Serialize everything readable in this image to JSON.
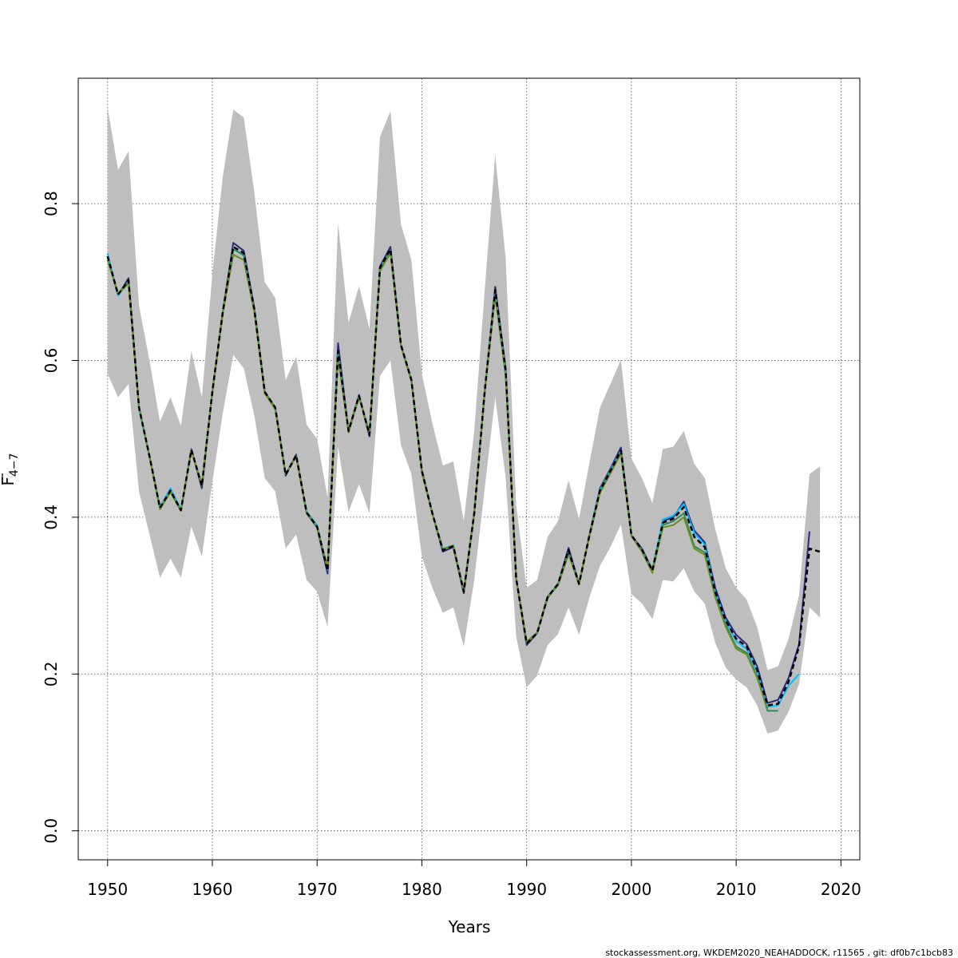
{
  "chart_data": {
    "type": "line",
    "title": "",
    "xlabel": "Years",
    "ylabel_main": "F",
    "ylabel_sub": "4−7",
    "xlim": [
      1947.2,
      2021.8
    ],
    "ylim": [
      -0.037,
      0.96
    ],
    "xticks": [
      1950,
      1960,
      1970,
      1980,
      1990,
      2000,
      2010,
      2020
    ],
    "yticks": [
      0.0,
      0.2,
      0.4,
      0.6,
      0.8
    ],
    "ytick_labels": [
      "0.0",
      "0.2",
      "0.4",
      "0.6",
      "0.8"
    ],
    "grid": true,
    "legend": "none",
    "band": {
      "color": "#bebebe",
      "x": [
        1950,
        1951,
        1952,
        1953,
        1954,
        1955,
        1956,
        1957,
        1958,
        1959,
        1960,
        1961,
        1962,
        1963,
        1964,
        1965,
        1966,
        1967,
        1968,
        1969,
        1970,
        1971,
        1972,
        1973,
        1974,
        1975,
        1976,
        1977,
        1978,
        1979,
        1980,
        1981,
        1982,
        1983,
        1984,
        1985,
        1986,
        1987,
        1988,
        1989,
        1990,
        1991,
        1992,
        1993,
        1994,
        1995,
        1996,
        1997,
        1998,
        1999,
        2000,
        2001,
        2002,
        2003,
        2004,
        2005,
        2006,
        2007,
        2008,
        2009,
        2010,
        2011,
        2012,
        2013,
        2014,
        2015,
        2016,
        2017,
        2018
      ],
      "upper": [
        0.923,
        0.843,
        0.867,
        0.67,
        0.6,
        0.522,
        0.553,
        0.517,
        0.612,
        0.553,
        0.71,
        0.835,
        0.92,
        0.91,
        0.815,
        0.7,
        0.68,
        0.575,
        0.605,
        0.518,
        0.5,
        0.425,
        0.775,
        0.648,
        0.695,
        0.64,
        0.885,
        0.918,
        0.774,
        0.728,
        0.583,
        0.52,
        0.466,
        0.471,
        0.395,
        0.51,
        0.69,
        0.862,
        0.73,
        0.415,
        0.31,
        0.32,
        0.375,
        0.395,
        0.447,
        0.398,
        0.47,
        0.54,
        0.57,
        0.601,
        0.475,
        0.45,
        0.418,
        0.487,
        0.49,
        0.51,
        0.468,
        0.45,
        0.385,
        0.335,
        0.31,
        0.295,
        0.26,
        0.205,
        0.21,
        0.245,
        0.3,
        0.455,
        0.465
      ],
      "lower": [
        0.583,
        0.553,
        0.57,
        0.433,
        0.378,
        0.323,
        0.347,
        0.323,
        0.388,
        0.35,
        0.445,
        0.533,
        0.607,
        0.59,
        0.53,
        0.45,
        0.433,
        0.36,
        0.378,
        0.32,
        0.305,
        0.26,
        0.49,
        0.407,
        0.442,
        0.405,
        0.58,
        0.6,
        0.492,
        0.455,
        0.35,
        0.31,
        0.278,
        0.285,
        0.235,
        0.32,
        0.437,
        0.553,
        0.45,
        0.248,
        0.183,
        0.198,
        0.237,
        0.251,
        0.285,
        0.25,
        0.298,
        0.338,
        0.362,
        0.391,
        0.302,
        0.29,
        0.27,
        0.32,
        0.318,
        0.335,
        0.305,
        0.29,
        0.24,
        0.208,
        0.193,
        0.183,
        0.16,
        0.124,
        0.128,
        0.152,
        0.187,
        0.285,
        0.272
      ]
    },
    "series": [
      {
        "color": "#2a2a80",
        "dash": false,
        "width": 2,
        "x": [
          1950,
          1951,
          1952,
          1953,
          1954,
          1955,
          1956,
          1957,
          1958,
          1959,
          1960,
          1961,
          1962,
          1963,
          1964,
          1965,
          1966,
          1967,
          1968,
          1969,
          1970,
          1971,
          1972,
          1973,
          1974,
          1975,
          1976,
          1977,
          1978,
          1979,
          1980,
          1981,
          1982,
          1983,
          1984,
          1985,
          1986,
          1987,
          1988,
          1989,
          1990,
          1991,
          1992,
          1993,
          1994,
          1995,
          1996,
          1997,
          1998,
          1999,
          2000,
          2001,
          2002,
          2003,
          2004,
          2005,
          2006,
          2007,
          2008,
          2009,
          2010,
          2011,
          2012,
          2013,
          2014,
          2015,
          2016,
          2017
        ],
        "y": [
          0.733,
          0.683,
          0.705,
          0.54,
          0.478,
          0.413,
          0.433,
          0.408,
          0.487,
          0.437,
          0.56,
          0.662,
          0.75,
          0.74,
          0.668,
          0.56,
          0.54,
          0.453,
          0.48,
          0.405,
          0.387,
          0.328,
          0.622,
          0.51,
          0.556,
          0.503,
          0.72,
          0.745,
          0.62,
          0.575,
          0.46,
          0.405,
          0.356,
          0.362,
          0.303,
          0.406,
          0.56,
          0.694,
          0.59,
          0.322,
          0.237,
          0.252,
          0.297,
          0.315,
          0.361,
          0.315,
          0.378,
          0.437,
          0.462,
          0.489,
          0.377,
          0.36,
          0.333,
          0.395,
          0.4,
          0.42,
          0.383,
          0.368,
          0.31,
          0.272,
          0.25,
          0.238,
          0.21,
          0.163,
          0.167,
          0.195,
          0.238,
          0.382
        ]
      },
      {
        "color": "#00bfff",
        "dash": false,
        "width": 2,
        "x": [
          1950,
          1951,
          1952,
          1953,
          1954,
          1955,
          1956,
          1957,
          1958,
          1959,
          1960,
          1961,
          1962,
          1963,
          1964,
          1965,
          1966,
          1967,
          1968,
          1969,
          1970,
          1971,
          1972,
          1973,
          1974,
          1975,
          1976,
          1977,
          1978,
          1979,
          1980,
          1981,
          1982,
          1983,
          1984,
          1985,
          1986,
          1987,
          1988,
          1989,
          1990,
          1991,
          1992,
          1993,
          1994,
          1995,
          1996,
          1997,
          1998,
          1999,
          2000,
          2001,
          2002,
          2003,
          2004,
          2005,
          2006,
          2007,
          2008,
          2009,
          2010,
          2011,
          2012,
          2013,
          2014,
          2015,
          2016
        ],
        "y": [
          0.737,
          0.683,
          0.7,
          0.538,
          0.477,
          0.413,
          0.437,
          0.41,
          0.485,
          0.442,
          0.56,
          0.662,
          0.742,
          0.735,
          0.665,
          0.56,
          0.54,
          0.455,
          0.478,
          0.407,
          0.39,
          0.333,
          0.612,
          0.51,
          0.555,
          0.507,
          0.718,
          0.74,
          0.62,
          0.575,
          0.459,
          0.405,
          0.36,
          0.364,
          0.306,
          0.406,
          0.562,
          0.688,
          0.585,
          0.323,
          0.24,
          0.253,
          0.299,
          0.315,
          0.355,
          0.315,
          0.377,
          0.435,
          0.46,
          0.485,
          0.377,
          0.358,
          0.332,
          0.397,
          0.402,
          0.417,
          0.38,
          0.365,
          0.305,
          0.268,
          0.242,
          0.232,
          0.203,
          0.158,
          0.16,
          0.185,
          0.2
        ]
      },
      {
        "color": "#2e8b57",
        "dash": false,
        "width": 2,
        "x": [
          1950,
          1951,
          1952,
          1953,
          1954,
          1955,
          1956,
          1957,
          1958,
          1959,
          1960,
          1961,
          1962,
          1963,
          1964,
          1965,
          1966,
          1967,
          1968,
          1969,
          1970,
          1971,
          1972,
          1973,
          1974,
          1975,
          1976,
          1977,
          1978,
          1979,
          1980,
          1981,
          1982,
          1983,
          1984,
          1985,
          1986,
          1987,
          1988,
          1989,
          1990,
          1991,
          1992,
          1993,
          1994,
          1995,
          1996,
          1997,
          1998,
          1999,
          2000,
          2001,
          2002,
          2003,
          2004,
          2005,
          2006,
          2007,
          2008,
          2009,
          2010,
          2011,
          2012,
          2013,
          2014,
          2015
        ],
        "y": [
          0.731,
          0.685,
          0.7,
          0.541,
          0.478,
          0.411,
          0.433,
          0.409,
          0.486,
          0.441,
          0.56,
          0.662,
          0.742,
          0.734,
          0.665,
          0.56,
          0.54,
          0.455,
          0.478,
          0.406,
          0.388,
          0.334,
          0.608,
          0.51,
          0.555,
          0.507,
          0.716,
          0.74,
          0.619,
          0.575,
          0.458,
          0.405,
          0.359,
          0.364,
          0.306,
          0.405,
          0.561,
          0.685,
          0.582,
          0.322,
          0.241,
          0.253,
          0.299,
          0.314,
          0.354,
          0.315,
          0.377,
          0.433,
          0.458,
          0.483,
          0.377,
          0.358,
          0.331,
          0.39,
          0.395,
          0.405,
          0.363,
          0.355,
          0.3,
          0.263,
          0.235,
          0.227,
          0.197,
          0.153,
          0.153,
          null
        ]
      },
      {
        "color": "#6b8e23",
        "dash": false,
        "width": 2,
        "x": [
          1950,
          1951,
          1952,
          1953,
          1954,
          1955,
          1956,
          1957,
          1958,
          1959,
          1960,
          1961,
          1962,
          1963,
          1964,
          1965,
          1966,
          1967,
          1968,
          1969,
          1970,
          1971,
          1972,
          1973,
          1974,
          1975,
          1976,
          1977,
          1978,
          1979,
          1980,
          1981,
          1982,
          1983,
          1984,
          1985,
          1986,
          1987,
          1988,
          1989,
          1990,
          1991,
          1992,
          1993,
          1994,
          1995,
          1996,
          1997,
          1998,
          1999,
          2000,
          2001,
          2002,
          2003,
          2004,
          2005,
          2006,
          2007,
          2008,
          2009,
          2010,
          2011,
          2012,
          2013
        ],
        "y": [
          0.728,
          0.685,
          0.698,
          0.54,
          0.477,
          0.41,
          0.432,
          0.408,
          0.485,
          0.441,
          0.558,
          0.66,
          0.735,
          0.728,
          0.662,
          0.558,
          0.538,
          0.455,
          0.477,
          0.405,
          0.388,
          0.336,
          0.604,
          0.508,
          0.553,
          0.508,
          0.714,
          0.737,
          0.618,
          0.574,
          0.457,
          0.404,
          0.359,
          0.363,
          0.307,
          0.404,
          0.56,
          0.682,
          0.58,
          0.322,
          0.241,
          0.253,
          0.298,
          0.313,
          0.353,
          0.314,
          0.376,
          0.431,
          0.456,
          0.481,
          0.376,
          0.356,
          0.329,
          0.387,
          0.39,
          0.4,
          0.36,
          0.352,
          0.298,
          0.26,
          0.232,
          0.225,
          0.195,
          0.155
        ]
      },
      {
        "color": "#000000",
        "dash": true,
        "width": 2.5,
        "x": [
          1950,
          1951,
          1952,
          1953,
          1954,
          1955,
          1956,
          1957,
          1958,
          1959,
          1960,
          1961,
          1962,
          1963,
          1964,
          1965,
          1966,
          1967,
          1968,
          1969,
          1970,
          1971,
          1972,
          1973,
          1974,
          1975,
          1976,
          1977,
          1978,
          1979,
          1980,
          1981,
          1982,
          1983,
          1984,
          1985,
          1986,
          1987,
          1988,
          1989,
          1990,
          1991,
          1992,
          1993,
          1994,
          1995,
          1996,
          1997,
          1998,
          1999,
          2000,
          2001,
          2002,
          2003,
          2004,
          2005,
          2006,
          2007,
          2008,
          2009,
          2010,
          2011,
          2012,
          2013,
          2014,
          2015,
          2016,
          2017,
          2018
        ],
        "y": [
          0.733,
          0.684,
          0.702,
          0.54,
          0.478,
          0.412,
          0.434,
          0.409,
          0.486,
          0.44,
          0.56,
          0.662,
          0.745,
          0.737,
          0.666,
          0.56,
          0.54,
          0.454,
          0.479,
          0.406,
          0.388,
          0.332,
          0.612,
          0.51,
          0.555,
          0.505,
          0.718,
          0.742,
          0.62,
          0.575,
          0.459,
          0.405,
          0.358,
          0.363,
          0.305,
          0.405,
          0.561,
          0.69,
          0.587,
          0.322,
          0.239,
          0.252,
          0.298,
          0.315,
          0.358,
          0.315,
          0.377,
          0.434,
          0.459,
          0.485,
          0.377,
          0.359,
          0.332,
          0.393,
          0.398,
          0.413,
          0.375,
          0.362,
          0.305,
          0.268,
          0.245,
          0.235,
          0.205,
          0.16,
          0.162,
          0.19,
          0.235,
          0.36,
          0.356
        ]
      }
    ]
  },
  "footer": {
    "text": "stockassessment.org, WKDEM2020_NEAHADDOCK, r11565 , git: df0b7c1bcb83"
  }
}
